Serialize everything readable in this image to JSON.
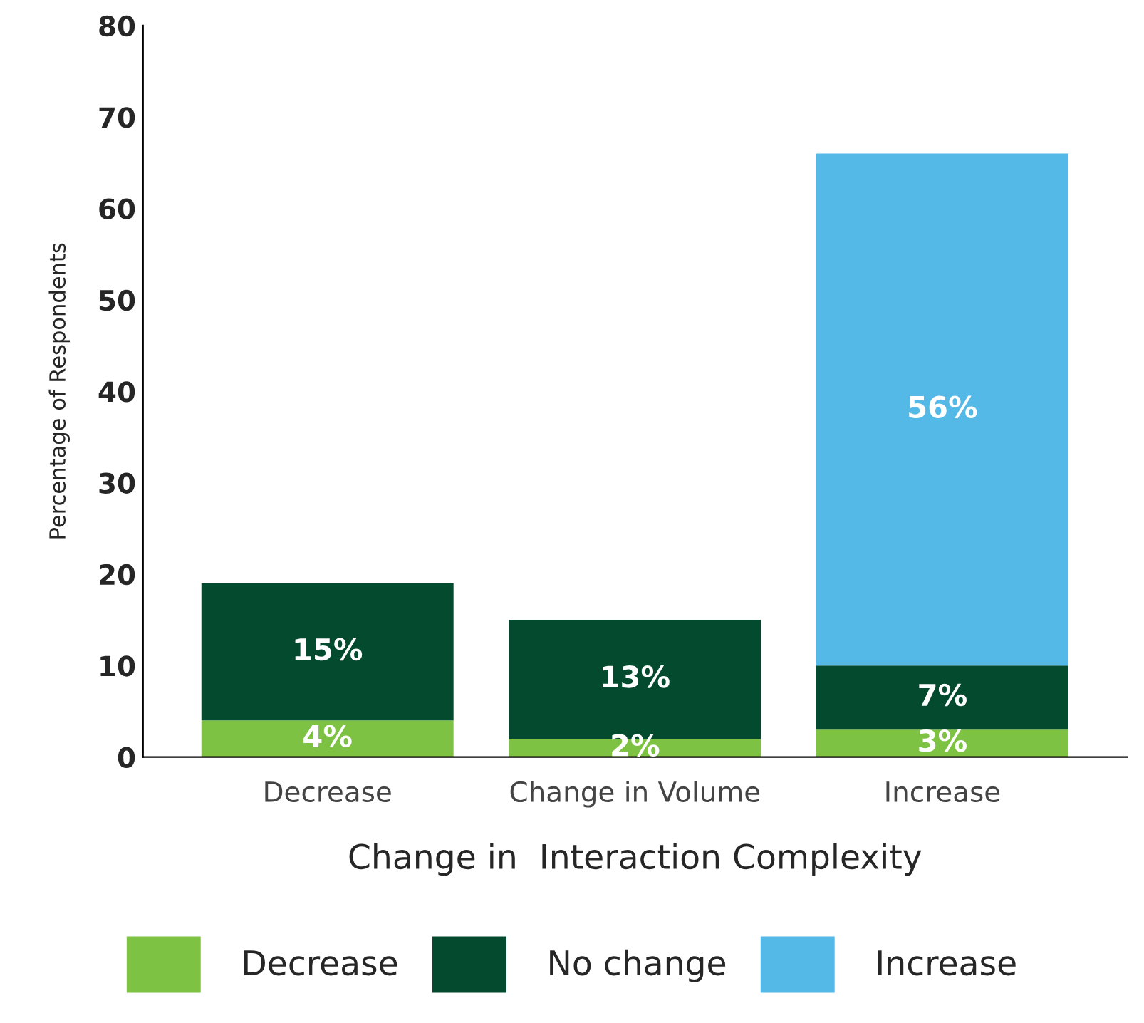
{
  "chart_data": {
    "type": "bar",
    "stacked": true,
    "xlabel": "Change in  Interaction Complexity",
    "ylabel": "Percentage of Respondents",
    "categories": [
      "Decrease",
      "Change in Volume",
      "Increase"
    ],
    "series": [
      {
        "name": "Decrease",
        "color": "#7dc243",
        "values": [
          4,
          2,
          3
        ],
        "value_labels": [
          "4%",
          "2%",
          "3%"
        ]
      },
      {
        "name": "No change",
        "color": "#034a2e",
        "values": [
          15,
          13,
          7
        ],
        "value_labels": [
          "15%",
          "13%",
          "7%"
        ]
      },
      {
        "name": "Increase",
        "color": "#55b9e8",
        "values": [
          null,
          null,
          56
        ],
        "value_labels": [
          null,
          null,
          "56%"
        ]
      }
    ],
    "ylim": [
      0,
      80
    ],
    "yticks": [
      0,
      10,
      20,
      30,
      40,
      50,
      60,
      70,
      80
    ],
    "grid": false,
    "legend": "bottom"
  }
}
